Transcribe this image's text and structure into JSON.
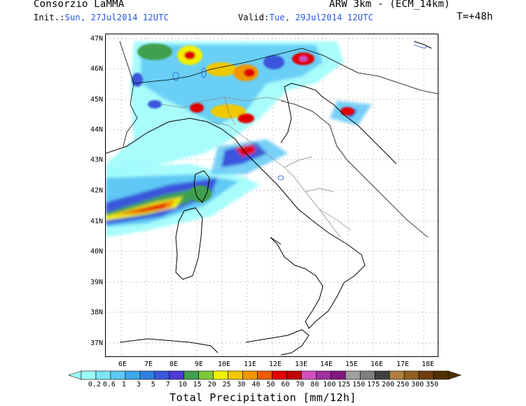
{
  "header": {
    "org": "Consorzio LaMMA",
    "model": "ARW 3km - (ECM_14km)",
    "init_label": "Init.:",
    "init_value": "Sun, 27Jul2014 12UTC",
    "valid_label": "Valid:",
    "valid_value": "Tue, 29Jul2014 12UTC",
    "forecast_step": "T=+48h"
  },
  "map": {
    "lat_labels": [
      "47N",
      "46N",
      "45N",
      "44N",
      "43N",
      "42N",
      "41N",
      "40N",
      "39N",
      "38N",
      "37N"
    ],
    "lon_labels": [
      "6E",
      "7E",
      "8E",
      "9E",
      "10E",
      "11E",
      "12E",
      "13E",
      "14E",
      "15E",
      "16E",
      "17E",
      "18E"
    ]
  },
  "colorbar": {
    "labels": [
      "0.2",
      "0.6",
      "1",
      "3",
      "5",
      "7",
      "10",
      "15",
      "20",
      "25",
      "30",
      "40",
      "50",
      "60",
      "70",
      "80",
      "100",
      "125",
      "150",
      "175",
      "200",
      "250",
      "300",
      "350"
    ],
    "colors": [
      "#9ffcfc",
      "#7fe4f8",
      "#5fc8f4",
      "#3fa6ee",
      "#2f80e0",
      "#3a56dc",
      "#4d3ad6",
      "#3fa050",
      "#7fc83c",
      "#f0f000",
      "#f0c800",
      "#f09600",
      "#f05a00",
      "#e00000",
      "#c00000",
      "#d050c0",
      "#a030a0",
      "#801880",
      "#a0a0a0",
      "#808080",
      "#404040",
      "#b08040",
      "#906020",
      "#703c10",
      "#503000"
    ],
    "title": "Total Precipitation [mm/12h]"
  }
}
